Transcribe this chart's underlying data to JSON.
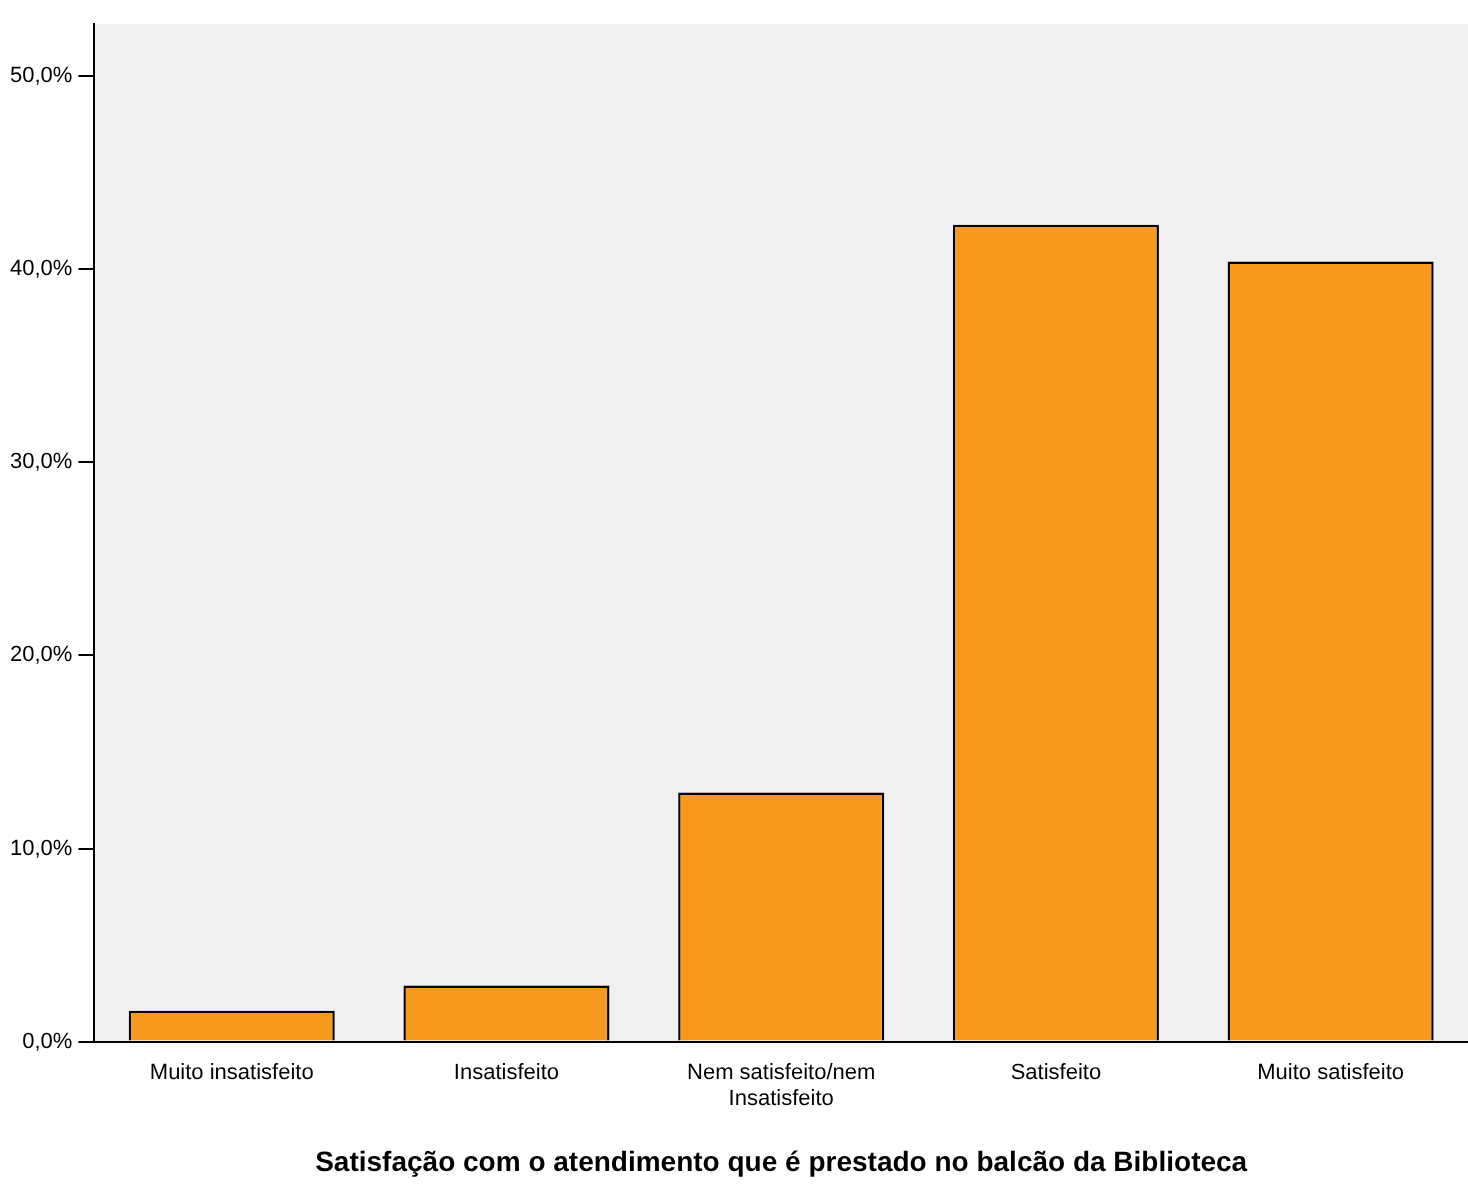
{
  "chart_data": {
    "type": "bar",
    "xlabel": "Satisfação com o atendimento que é prestado no balcão da Biblioteca",
    "categories": [
      "Muito insatisfeito",
      "Insatisfeito",
      "Nem satisfeito/nem Insatisfeito",
      "Satisfeito",
      "Muito satisfeito"
    ],
    "values": [
      1.6,
      2.9,
      12.9,
      42.3,
      40.4
    ],
    "color": "#f7991f",
    "ylim": [
      0,
      52.7
    ],
    "yticks": [
      {
        "value": 0,
        "label": "0,0%"
      },
      {
        "value": 10,
        "label": "10,0%"
      },
      {
        "value": 20,
        "label": "20,0%"
      },
      {
        "value": 30,
        "label": "30,0%"
      },
      {
        "value": 40,
        "label": "40,0%"
      },
      {
        "value": 50,
        "label": "50,0%"
      }
    ],
    "grid": false,
    "legend": false
  }
}
